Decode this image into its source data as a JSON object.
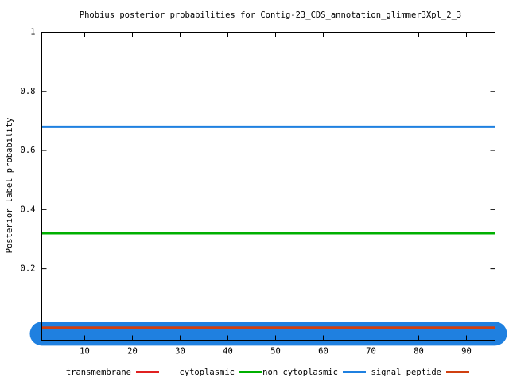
{
  "chart_data": {
    "type": "line",
    "title": "Phobius posterior probabilities for Contig-23_CDS_annotation_glimmer3Xpl_2_3",
    "y_label": "Posterior label probability",
    "x": [
      1,
      96
    ],
    "xlim": [
      1,
      96
    ],
    "ylim": [
      -0.042,
      1
    ],
    "xticks": [
      10,
      20,
      30,
      40,
      50,
      60,
      70,
      80,
      90
    ],
    "yticks": [
      0.2,
      0.4,
      0.6,
      0.8,
      1
    ],
    "series": [
      {
        "name": "transmembrane",
        "color": "#e02020",
        "values": [
          0,
          0
        ]
      },
      {
        "name": "cytoplasmic",
        "color": "#00b000",
        "values": [
          0.32,
          0.32
        ]
      },
      {
        "name": "non cytoplasmic",
        "color": "#1f80e0",
        "values": [
          0.68,
          0.68
        ]
      },
      {
        "name": "signal peptide",
        "color": "#d04010",
        "values": [
          0,
          0
        ]
      }
    ],
    "topology_bar": {
      "start": 1,
      "end": 96,
      "value": -0.02,
      "color": "#1f80e0"
    }
  }
}
